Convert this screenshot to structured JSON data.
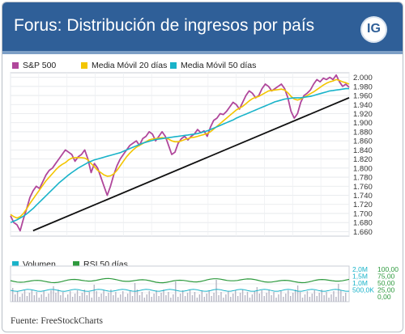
{
  "header": {
    "title": "Forus: Distribución de ingresos por país",
    "logo_text": "IG",
    "background": "#2f5f98"
  },
  "source": "Fuente: FreeStockCharts",
  "chart_data": [
    {
      "type": "line",
      "legend_placement": "top-left",
      "ylim": [
        1650,
        2010
      ],
      "yticks": [
        "1.660",
        "1.680",
        "1.700",
        "1.720",
        "1.740",
        "1.760",
        "1.780",
        "1.800",
        "1.820",
        "1.840",
        "1.860",
        "1.880",
        "1.900",
        "1.920",
        "1.940",
        "1.960",
        "1.980",
        "2.000"
      ],
      "ytick_values": [
        1660,
        1680,
        1700,
        1720,
        1740,
        1760,
        1780,
        1800,
        1820,
        1840,
        1860,
        1880,
        1900,
        1920,
        1940,
        1960,
        1980,
        2000
      ],
      "grid": true,
      "series": [
        {
          "name": "S&P 500",
          "color": "#b0479b",
          "values": [
            1695,
            1680,
            1675,
            1662,
            1688,
            1710,
            1735,
            1750,
            1760,
            1755,
            1770,
            1785,
            1795,
            1800,
            1810,
            1820,
            1830,
            1840,
            1835,
            1830,
            1815,
            1825,
            1830,
            1840,
            1820,
            1790,
            1810,
            1800,
            1780,
            1760,
            1740,
            1760,
            1785,
            1805,
            1820,
            1830,
            1840,
            1850,
            1855,
            1860,
            1850,
            1865,
            1870,
            1880,
            1875,
            1860,
            1870,
            1880,
            1870,
            1850,
            1830,
            1835,
            1855,
            1865,
            1870,
            1862,
            1870,
            1875,
            1885,
            1878,
            1882,
            1870,
            1890,
            1905,
            1910,
            1920,
            1918,
            1925,
            1935,
            1945,
            1940,
            1930,
            1945,
            1960,
            1970,
            1965,
            1955,
            1960,
            1975,
            1985,
            1980,
            1970,
            1975,
            1980,
            1985,
            1975,
            1955,
            1925,
            1910,
            1920,
            1945,
            1960,
            1965,
            1972,
            1985,
            1995,
            1990,
            1998,
            1995,
            2000,
            1995,
            2005,
            1990,
            1980,
            1985,
            1978
          ],
          "x_start": 0,
          "x_end": 105
        },
        {
          "name": "Media Móvil 20 días",
          "color": "#f3c500",
          "values": [
            1698,
            1693,
            1690,
            1693,
            1700,
            1710,
            1722,
            1732,
            1742,
            1752,
            1762,
            1772,
            1780,
            1788,
            1796,
            1803,
            1808,
            1812,
            1818,
            1822,
            1823,
            1823,
            1823,
            1822,
            1818,
            1810,
            1803,
            1795,
            1790,
            1785,
            1782,
            1783,
            1787,
            1795,
            1805,
            1815,
            1825,
            1833,
            1840,
            1846,
            1850,
            1854,
            1858,
            1862,
            1864,
            1865,
            1866,
            1867,
            1866,
            1864,
            1860,
            1858,
            1858,
            1860,
            1863,
            1865,
            1867,
            1868,
            1870,
            1872,
            1874,
            1876,
            1880,
            1886,
            1892,
            1898,
            1904,
            1910,
            1916,
            1922,
            1928,
            1932,
            1936,
            1942,
            1948,
            1953,
            1956,
            1958,
            1962,
            1966,
            1970,
            1971,
            1972,
            1973,
            1974,
            1972,
            1966,
            1958,
            1952,
            1950,
            1952,
            1956,
            1960,
            1964,
            1968,
            1973,
            1978,
            1983,
            1987,
            1990,
            1992,
            1995,
            1993,
            1990,
            1988,
            1985
          ],
          "x_start": 0,
          "x_end": 105
        },
        {
          "name": "Media Móvil 50 días",
          "color": "#19b3c9",
          "values": [
            1680,
            1683,
            1686,
            1690,
            1694,
            1699,
            1705,
            1711,
            1718,
            1725,
            1732,
            1739,
            1746,
            1753,
            1760,
            1767,
            1773,
            1779,
            1785,
            1790,
            1795,
            1800,
            1804,
            1808,
            1812,
            1815,
            1818,
            1820,
            1822,
            1824,
            1826,
            1828,
            1830,
            1832,
            1834,
            1837,
            1840,
            1843,
            1846,
            1849,
            1852,
            1855,
            1857,
            1859,
            1861,
            1863,
            1864,
            1865,
            1866,
            1867,
            1868,
            1869,
            1870,
            1871,
            1872,
            1873,
            1874,
            1875,
            1876,
            1878,
            1880,
            1882,
            1885,
            1888,
            1891,
            1894,
            1897,
            1900,
            1903,
            1906,
            1910,
            1913,
            1916,
            1919,
            1922,
            1925,
            1928,
            1931,
            1934,
            1937,
            1940,
            1943,
            1946,
            1948,
            1950,
            1952,
            1953,
            1954,
            1955,
            1955,
            1955,
            1956,
            1957,
            1958,
            1960,
            1962,
            1964,
            1966,
            1968,
            1970,
            1971,
            1972,
            1973,
            1974,
            1975,
            1975
          ],
          "x_start": 0,
          "x_end": 105
        },
        {
          "name": "",
          "color": "#111111",
          "kind": "trendline",
          "points": [
            [
              7,
              1662
            ],
            [
              105,
              1955
            ]
          ]
        }
      ]
    },
    {
      "type": "bar",
      "legend_placement": "top-left",
      "left_axis_labels": [
        "2,0M",
        "1,5M",
        "1,0M",
        "500,0K"
      ],
      "right_axis_labels": [
        "100,00",
        "75,00",
        "50,00",
        "25,00",
        "0,00"
      ],
      "series": [
        {
          "name": "Volumen",
          "color": "#19b3c9"
        },
        {
          "name": "RSI 50 días",
          "color": "#2e9a3e"
        }
      ]
    }
  ]
}
